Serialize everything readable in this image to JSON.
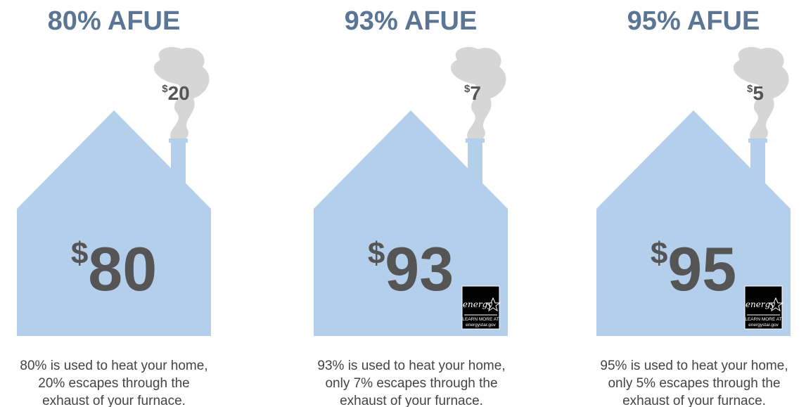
{
  "panels": [
    {
      "title": "80% AFUE",
      "exhaust": {
        "symbol": "$",
        "amount": "20"
      },
      "heat": {
        "symbol": "$",
        "amount": "80"
      },
      "caption": [
        "80% is used to heat your home,",
        "20% escapes through the",
        "exhaust of your furnace."
      ]
    },
    {
      "title": "93% AFUE",
      "exhaust": {
        "symbol": "$",
        "amount": "7"
      },
      "heat": {
        "symbol": "$",
        "amount": "93"
      },
      "caption": [
        "93% is used to heat your home,",
        "only 7% escapes through the",
        "exhaust of your furnace."
      ],
      "badge": {
        "logo": "energy",
        "lines": [
          "LEARN MORE AT",
          "energystar.gov"
        ]
      }
    },
    {
      "title": "95% AFUE",
      "exhaust": {
        "symbol": "$",
        "amount": "5"
      },
      "heat": {
        "symbol": "$",
        "amount": "95"
      },
      "caption": [
        "95% is used to heat your home,",
        "only 5% escapes through the",
        "exhaust of your furnace."
      ],
      "badge": {
        "logo": "energy",
        "lines": [
          "LEARN MORE AT",
          "energystar.gov"
        ]
      }
    }
  ]
}
